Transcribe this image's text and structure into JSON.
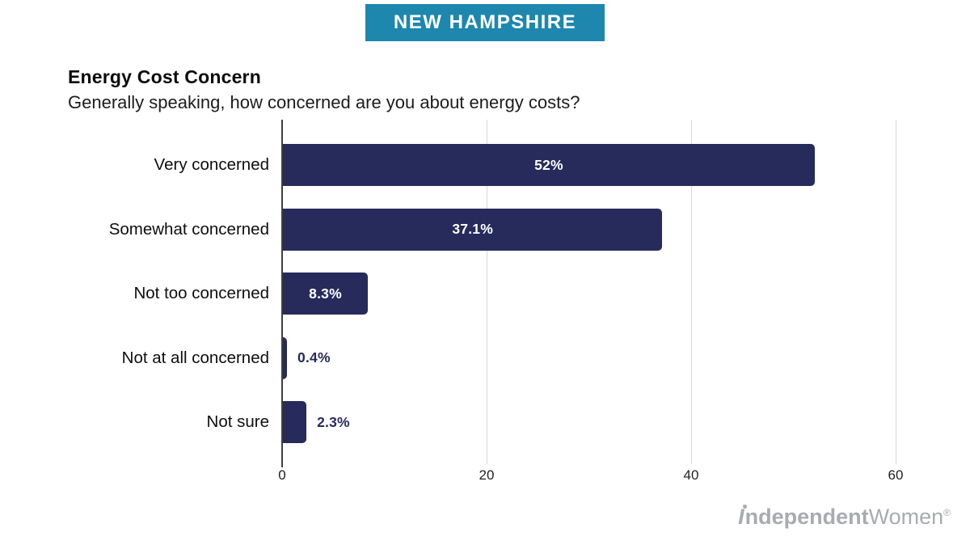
{
  "banner": {
    "label": "NEW HAMPSHIRE",
    "bg_color": "#1e87ae",
    "text_color": "#ffffff"
  },
  "header": {
    "title": "Energy Cost Concern",
    "subtitle": "Generally speaking, how concerned are you about energy costs?"
  },
  "chart_data": {
    "type": "bar",
    "orientation": "horizontal",
    "title": "Energy Cost Concern",
    "subtitle": "Generally speaking, how concerned are you about energy costs?",
    "categories": [
      "Very concerned",
      "Somewhat concerned",
      "Not too concerned",
      "Not at all concerned",
      "Not sure"
    ],
    "values": [
      52,
      37.1,
      8.3,
      0.4,
      2.3
    ],
    "value_labels": [
      "52%",
      "37.1%",
      "8.3%",
      "0.4%",
      "2.3%"
    ],
    "xticks": [
      0,
      20,
      40,
      60
    ],
    "xtick_labels": [
      "0",
      "20",
      "40",
      "60"
    ],
    "xlim": [
      0,
      60
    ],
    "xlabel": "",
    "ylabel": "",
    "grid": true,
    "legend": false,
    "bar_color": "#262b5c",
    "value_label_inside_color": "#ffffff",
    "value_label_outside_color": "#262b5c"
  },
  "footer": {
    "logo": {
      "initial": "I",
      "bold_rest": "ndependent",
      "light": "Women",
      "registered": "®",
      "color": "#a8abaf"
    }
  }
}
